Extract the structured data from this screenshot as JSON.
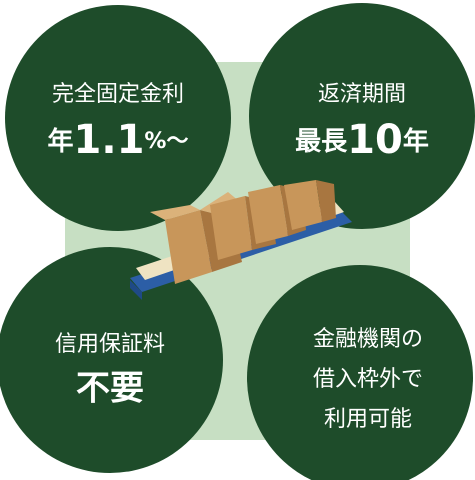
{
  "items": [
    {
      "line1": "完全固定金利",
      "prefix": "年",
      "number": "1.1",
      "suffix": "%～"
    },
    {
      "line1": "返済期間",
      "prefix": "最長",
      "number": "10",
      "suffix": "年"
    },
    {
      "line1": "信用保証料",
      "line2": "不要"
    },
    {
      "lines": [
        "金融機関の",
        "借入枠外で",
        "利用可能"
      ]
    }
  ]
}
